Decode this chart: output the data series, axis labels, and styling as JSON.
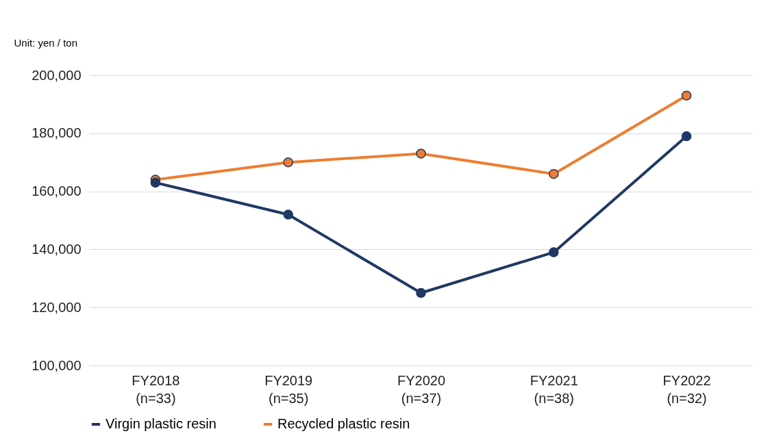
{
  "chart_data": {
    "type": "line",
    "ylabel": "Unit: yen / ton",
    "categories": [
      "FY2018\n(n=33)",
      "FY2019\n(n=35)",
      "FY2020\n(n=37)",
      "FY2021\n(n=38)",
      "FY2022\n(n=32)"
    ],
    "series": [
      {
        "name": "Virgin plastic resin",
        "color": "#203864",
        "values": [
          163000,
          152000,
          125000,
          139000,
          179000
        ]
      },
      {
        "name": "Recycled plastic resin",
        "color": "#ed7d31",
        "values": [
          164000,
          170000,
          173000,
          166000,
          193000
        ]
      }
    ],
    "ylim": [
      100000,
      200000
    ],
    "yticks": [
      {
        "value": 100000,
        "label": "100,000"
      },
      {
        "value": 120000,
        "label": "120,000"
      },
      {
        "value": 140000,
        "label": "140,000"
      },
      {
        "value": 160000,
        "label": "160,000"
      },
      {
        "value": 180000,
        "label": "180,000"
      },
      {
        "value": 200000,
        "label": "200,000"
      }
    ],
    "grid": "y",
    "legend": "bottom",
    "marker": "circle",
    "line_style": "solid"
  }
}
